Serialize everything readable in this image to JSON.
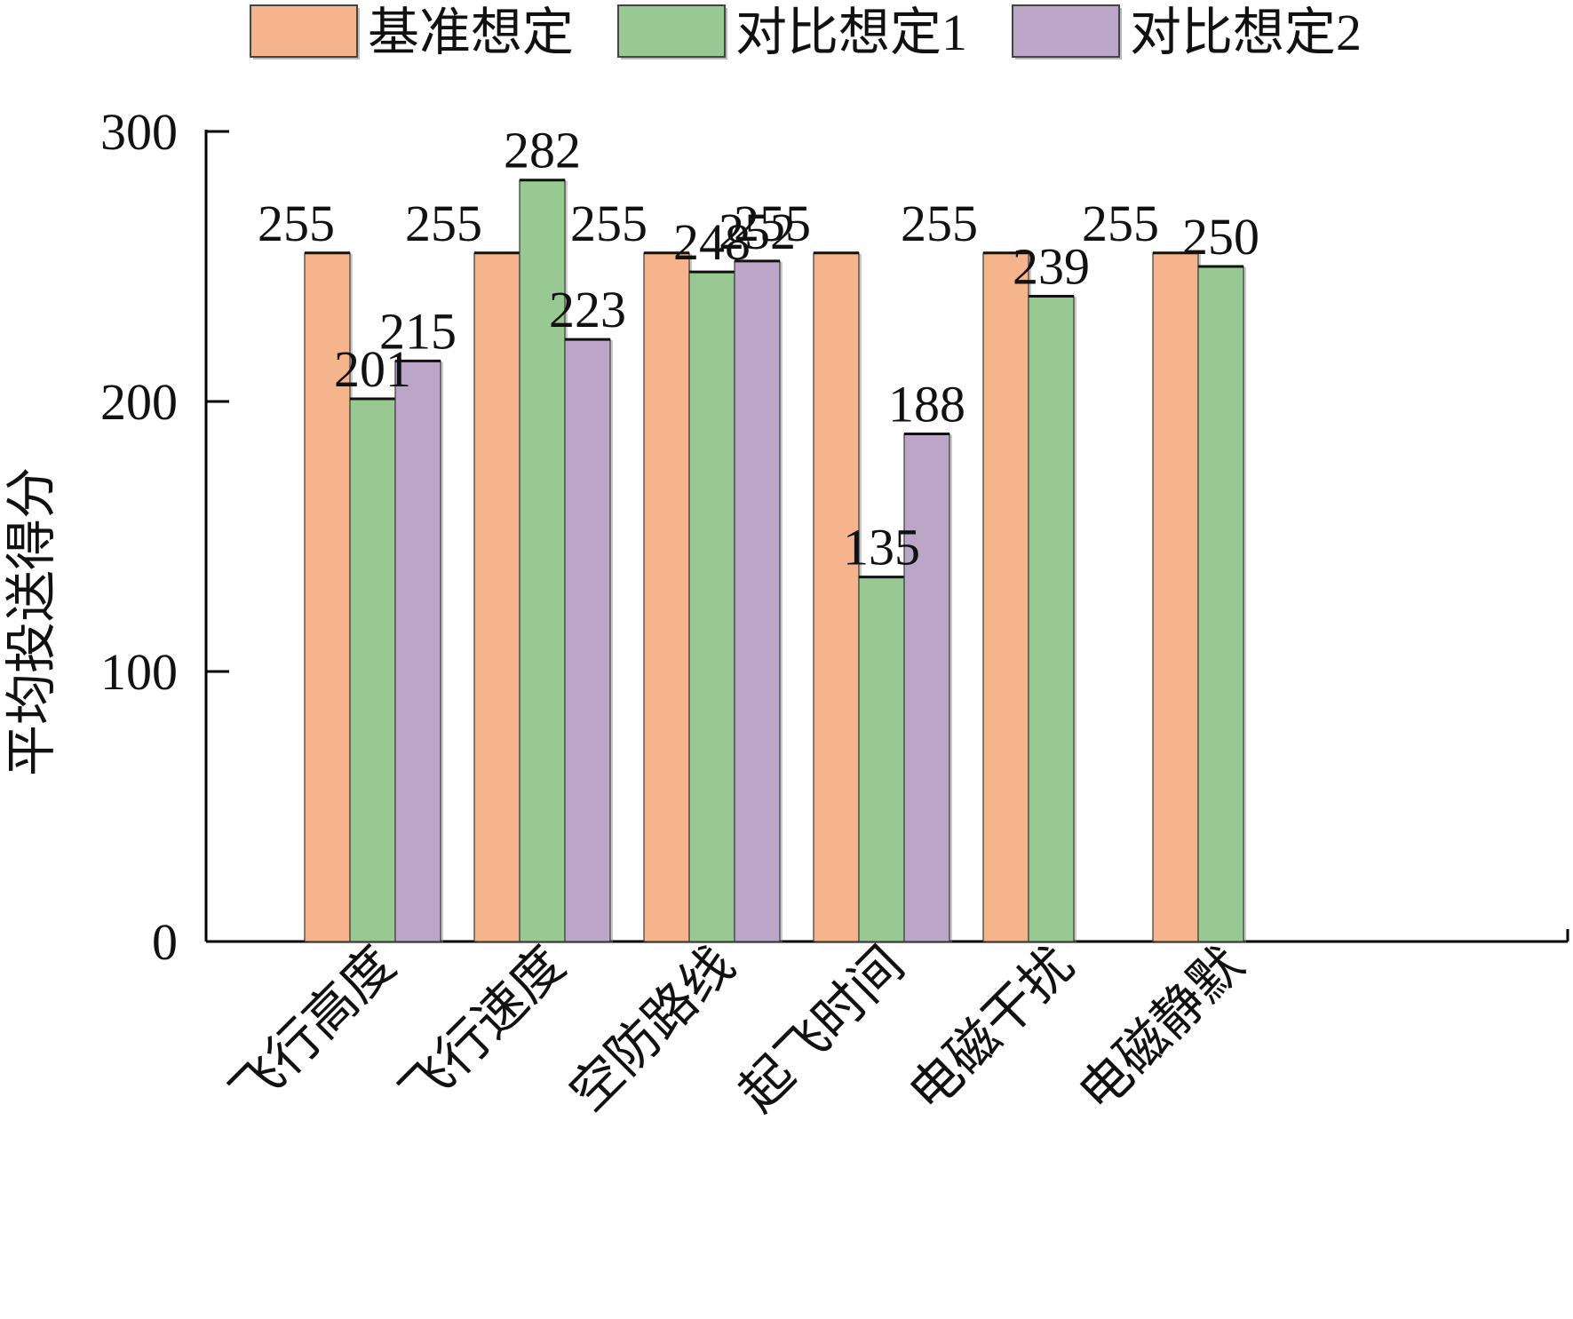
{
  "chart_data": {
    "type": "bar",
    "title": "",
    "xlabel": "",
    "ylabel": "平均投送得分",
    "ylim": [
      0,
      300
    ],
    "yticks": [
      0,
      100,
      200,
      300
    ],
    "categories": [
      "飞行高度",
      "飞行速度",
      "空防路线",
      "起飞时间",
      "电磁干扰",
      "电磁静默"
    ],
    "series": [
      {
        "name": "基准想定",
        "color": "#f5b48c",
        "values": [
          255,
          255,
          255,
          255,
          255,
          255
        ]
      },
      {
        "name": "对比想定1",
        "color": "#99c992",
        "values": [
          201,
          282,
          248,
          135,
          239,
          250
        ]
      },
      {
        "name": "对比想定2",
        "color": "#bca6c8",
        "values": [
          215,
          223,
          252,
          188,
          null,
          null
        ]
      }
    ],
    "legend_position": "top",
    "grid": false,
    "show_data_labels": true
  }
}
